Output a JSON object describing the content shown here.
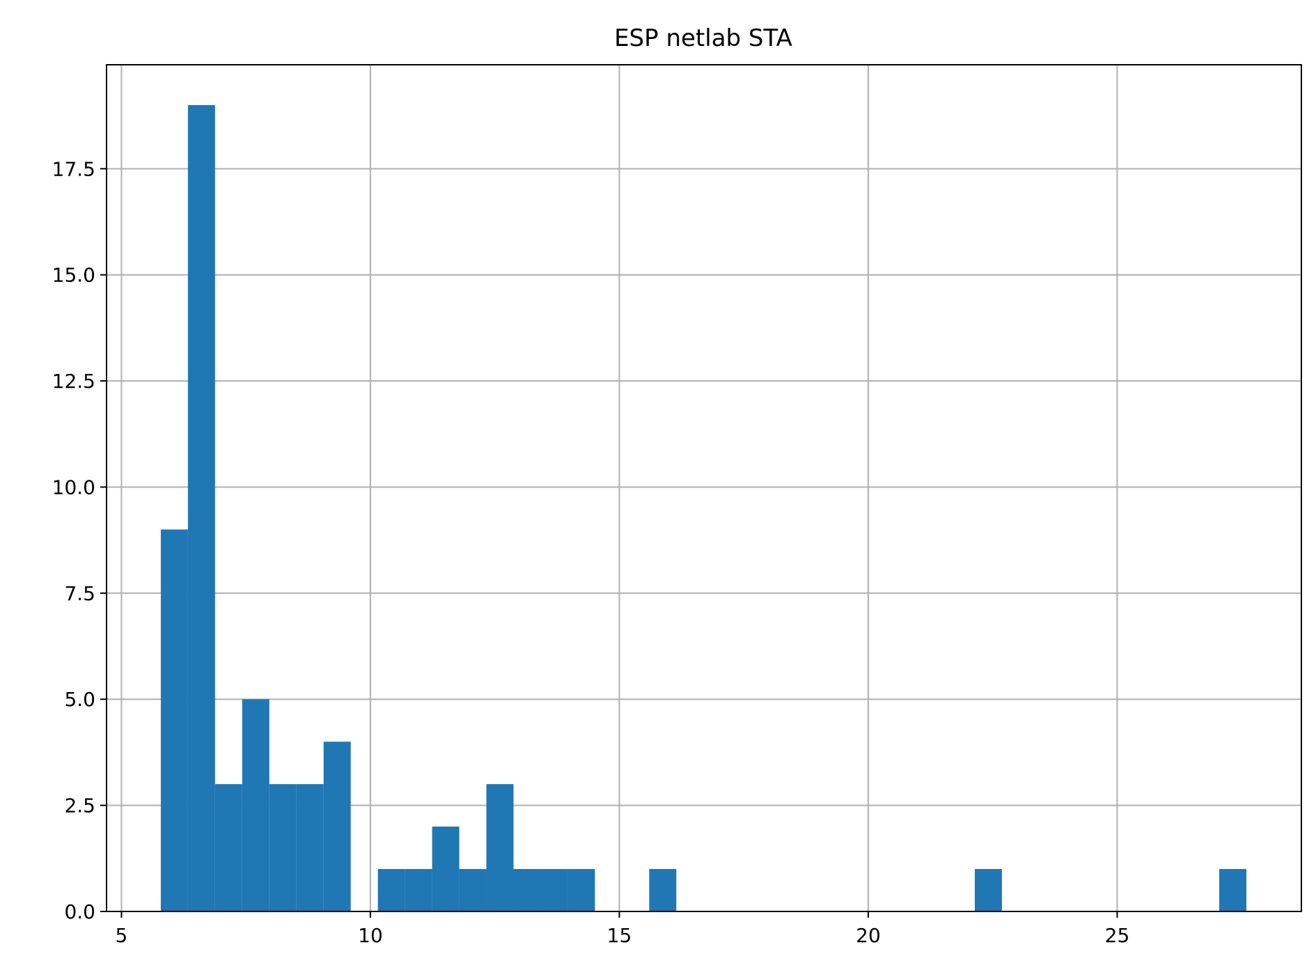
{
  "chart_data": {
    "type": "bar",
    "title": "ESP netlab STA",
    "xlabel": "",
    "ylabel": "",
    "bin_width": 0.545,
    "bins": [
      {
        "start": 5.79,
        "count": 9
      },
      {
        "start": 6.335,
        "count": 19
      },
      {
        "start": 6.88,
        "count": 3
      },
      {
        "start": 7.425,
        "count": 5
      },
      {
        "start": 7.97,
        "count": 3
      },
      {
        "start": 8.515,
        "count": 3
      },
      {
        "start": 9.06,
        "count": 4
      },
      {
        "start": 10.15,
        "count": 1
      },
      {
        "start": 10.695,
        "count": 1
      },
      {
        "start": 11.24,
        "count": 2
      },
      {
        "start": 11.785,
        "count": 1
      },
      {
        "start": 12.33,
        "count": 3
      },
      {
        "start": 12.875,
        "count": 1
      },
      {
        "start": 13.42,
        "count": 1
      },
      {
        "start": 13.965,
        "count": 1
      },
      {
        "start": 15.6,
        "count": 1
      },
      {
        "start": 22.14,
        "count": 1
      },
      {
        "start": 27.05,
        "count": 1
      }
    ],
    "xlim": [
      4.7,
      28.7
    ],
    "ylim": [
      0,
      19.95
    ],
    "xticks": [
      5,
      10,
      15,
      20,
      25
    ],
    "xtick_labels": [
      "5",
      "10",
      "15",
      "20",
      "25"
    ],
    "yticks": [
      0,
      2.5,
      5,
      7.5,
      10,
      12.5,
      15,
      17.5
    ],
    "ytick_labels": [
      "0.0",
      "2.5",
      "5.0",
      "7.5",
      "10.0",
      "12.5",
      "15.0",
      "17.5"
    ],
    "grid": true,
    "bar_color": "#1f77b4"
  }
}
